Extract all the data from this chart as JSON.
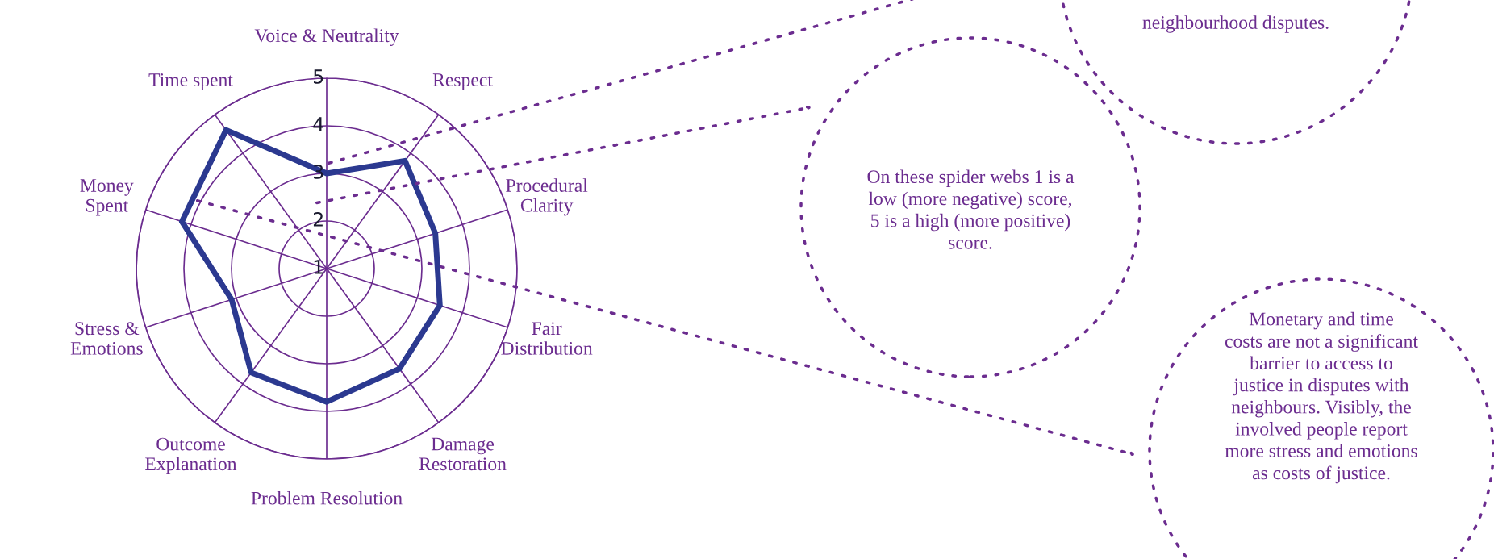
{
  "chart_data": {
    "type": "radar",
    "categories": [
      "Voice & Neutrality",
      "Respect",
      "Procedural\nClarity",
      "Fair\nDistribution",
      "Damage\nRestoration",
      "Problem Resolution",
      "Outcome\nExplanation",
      "Stress &\nEmotions",
      "Money\nSpent",
      "Time spent"
    ],
    "series": [
      {
        "color": "#2b3990",
        "values": [
          3.0,
          3.8,
          3.4,
          3.5,
          3.6,
          3.8,
          3.7,
          3.1,
          4.2,
          4.6
        ]
      }
    ],
    "ylim": [
      1,
      5
    ],
    "yticks": [
      1,
      2,
      3,
      4,
      5
    ],
    "grid": true,
    "marker": "none",
    "line_style": "solid",
    "annotations": [
      "neighbourhood disputes.",
      "On these spider webs 1 is a\nlow (more negative) score,\n5 is a high (more positive)\nscore.",
      "Monetary and time\ncosts are not a significant\nbarrier to access to\njustice in disputes with\nneighbours. Visibly, the\ninvolved people report\nmore stress and emotions\nas costs of justice."
    ]
  }
}
